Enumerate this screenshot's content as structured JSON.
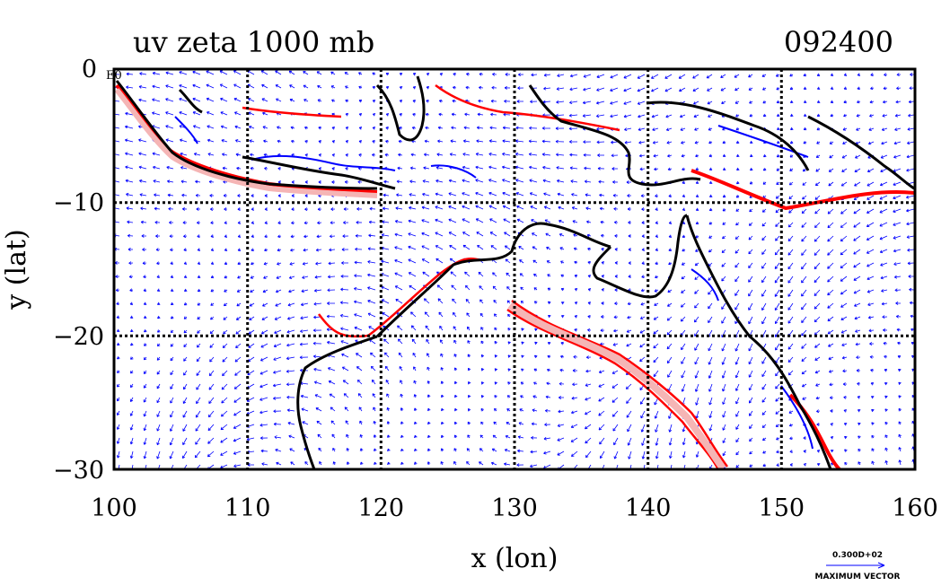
{
  "chart_data": {
    "type": "vector-contour-map",
    "title": "uv zeta 1000 mb",
    "time_label": "092400",
    "xlabel": "x (lon)",
    "ylabel": "y (lat)",
    "xlim": [
      100,
      160
    ],
    "ylim": [
      -30,
      0
    ],
    "xticks": [
      "100",
      "110",
      "120",
      "130",
      "140",
      "150",
      "160"
    ],
    "yticks": [
      "0",
      "−10",
      "−20",
      "−30"
    ],
    "grid": true,
    "corner_label": "E0",
    "vector_legend": {
      "value": "0.300D+02",
      "label": "MAXIMUM VECTOR"
    },
    "colors": {
      "vectors": "#0000ff",
      "positive_contour": "#ff0000",
      "positive_fill": "#f5b5b5",
      "negative_contour": "#0000ff",
      "coastline": "#000000"
    }
  }
}
